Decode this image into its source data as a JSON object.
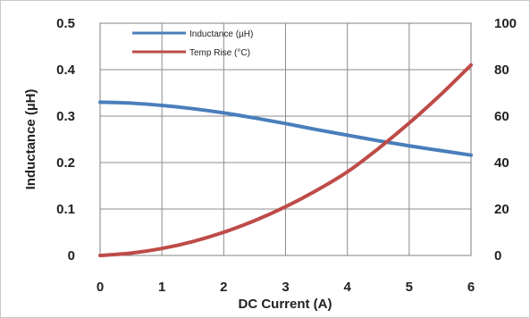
{
  "chart_data": {
    "type": "line",
    "title": "",
    "xlabel": "DC Current (A)",
    "ylabel": "Inductance (µH)",
    "y2label": "",
    "xlim": [
      0,
      6
    ],
    "ylim": [
      0,
      0.5
    ],
    "y2lim": [
      0,
      100
    ],
    "x_ticks": [
      "0",
      "1",
      "2",
      "3",
      "4",
      "5",
      "6"
    ],
    "y_ticks": [
      "0",
      "0.1",
      "0.2",
      "0.3",
      "0.4",
      "0.5"
    ],
    "y2_ticks": [
      "0",
      "20",
      "40",
      "60",
      "80",
      "100"
    ],
    "grid": true,
    "legend_position": "top-left",
    "x": [
      0,
      0.5,
      1,
      1.5,
      2,
      2.5,
      3,
      3.5,
      4,
      4.5,
      5,
      5.5,
      6
    ],
    "series": [
      {
        "name": "Inductance (µH)",
        "axis": "left",
        "color": "#4a7ebb",
        "values": [
          0.33,
          0.328,
          0.323,
          0.316,
          0.307,
          0.296,
          0.284,
          0.271,
          0.259,
          0.247,
          0.236,
          0.226,
          0.216
        ]
      },
      {
        "name": "Temp Rise (°C)",
        "axis": "right",
        "color": "#be4b48",
        "values": [
          0,
          1,
          3,
          6,
          10,
          15,
          21,
          28,
          36,
          46,
          57,
          69,
          82
        ]
      }
    ]
  }
}
